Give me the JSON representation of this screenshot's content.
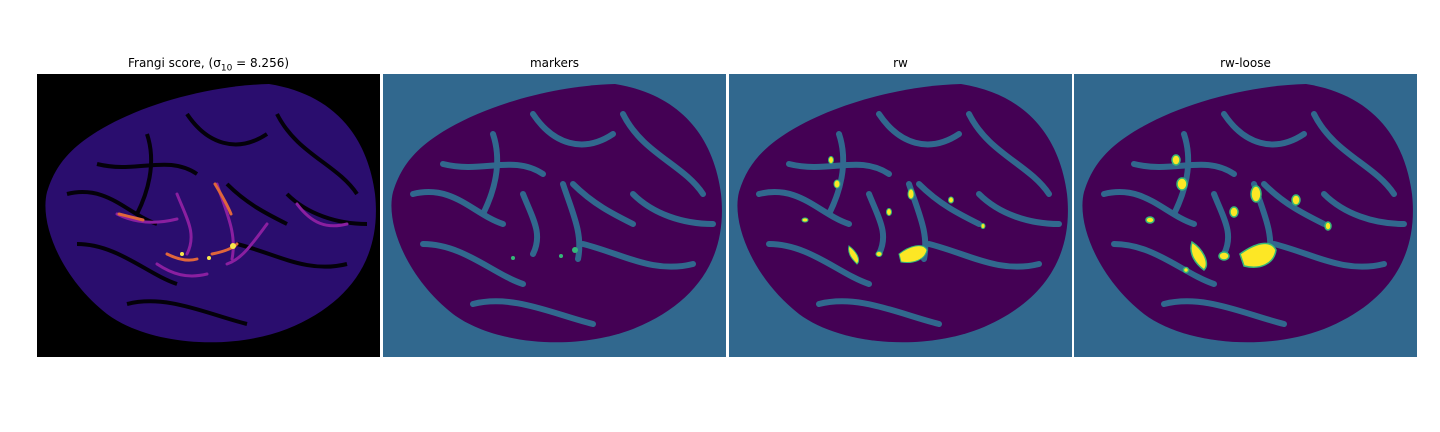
{
  "figure": {
    "panels": [
      {
        "title": "Frangi score, (σ",
        "title_sub": "10",
        "title_tail": " = 8.256)"
      },
      {
        "title": "markers"
      },
      {
        "title": "rw"
      },
      {
        "title": "rw-loose"
      }
    ]
  },
  "colors": {
    "frangi_background": "#000000",
    "frangi_tissue": "#2a0d6e",
    "frangi_highlight": "#e0663b",
    "frangi_peak": "#f9e84a",
    "seg_background": "#31688e",
    "seg_tissue": "#440154",
    "seg_marker": "#35b779",
    "seg_vessel": "#fde725"
  }
}
